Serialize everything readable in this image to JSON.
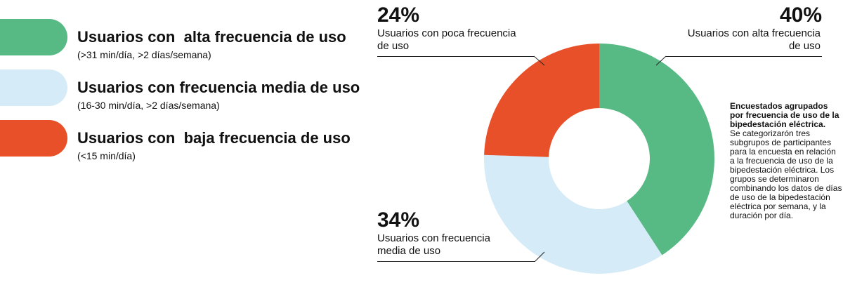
{
  "legend": [
    {
      "label": "Usuarios con  alta frecuencia de uso",
      "sub": "(>31 min/día, >2 días/semana)",
      "color": "#57b983"
    },
    {
      "label": "Usuarios con frecuencia media de uso",
      "sub": "(16-30 min/día, >2 días/semana)",
      "color": "#d5ebf7"
    },
    {
      "label": "Usuarios con  baja frecuencia de uso",
      "sub": "(<15 min/día)",
      "color": "#e8502a"
    }
  ],
  "callouts": {
    "high": {
      "pct": "40%",
      "label": "Usuarios con alta frecuencia de uso"
    },
    "low": {
      "pct": "24%",
      "label": "Usuarios con poca frecuencia de uso"
    },
    "medium": {
      "pct": "34%",
      "label": "Usuarios con frecuencia media de uso"
    }
  },
  "side_note": {
    "title": "Encuestados agrupados por frecuencia de uso de la bipedestación eléctrica.",
    "body": "Se categorizarón tres subgrupos de participantes para la encuesta en relación a la frecuencia de uso de la bipedestación eléctrica. Los grupos se determinaron combinando los datos de días de uso de la bipedestación eléctrica por semana, y la duración por día."
  },
  "chart_data": {
    "type": "pie",
    "donut": true,
    "title": "Encuestados agrupados por frecuencia de uso de la bipedestación eléctrica.",
    "categories": [
      "Usuarios con alta frecuencia de uso",
      "Usuarios con frecuencia media de uso",
      "Usuarios con poca frecuencia de uso"
    ],
    "values": [
      40,
      34,
      24
    ],
    "colors": [
      "#57b983",
      "#d5ebf7",
      "#e8502a"
    ]
  }
}
